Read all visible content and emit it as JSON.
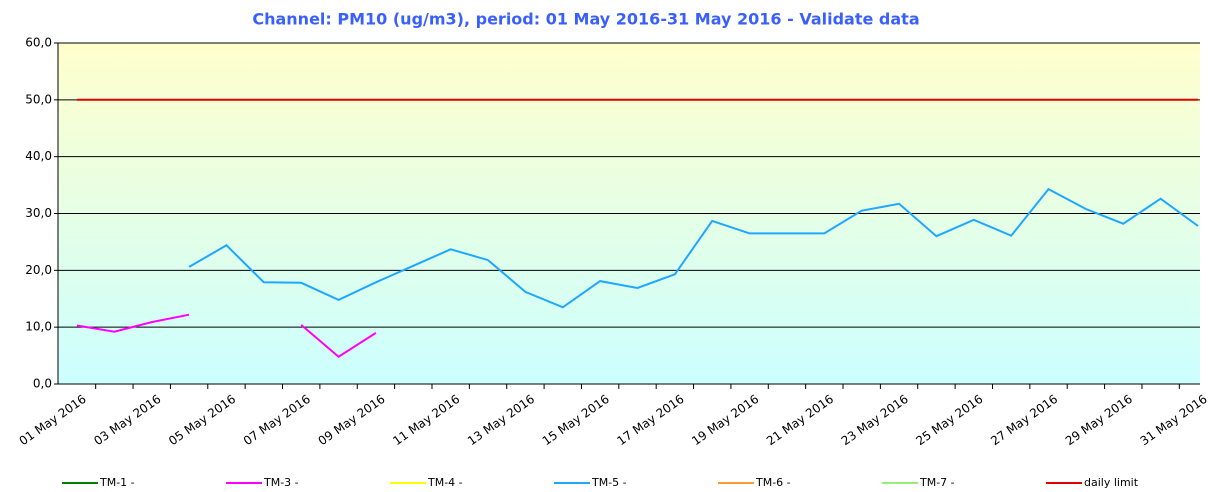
{
  "chart_data": {
    "type": "line",
    "title": "Channel: PM10 (ug/m3), period: 01 May 2016-31 May 2016 - Validate data",
    "categories": [
      "01 May 2016",
      null,
      "03 May 2016",
      null,
      "05 May 2016",
      null,
      "07 May 2016",
      null,
      "09 May 2016",
      null,
      "11 May 2016",
      null,
      "13 May 2016",
      null,
      "15 May 2016",
      null,
      "17 May 2016",
      null,
      "19 May 2016",
      null,
      "21 May 2016",
      null,
      "23 May 2016",
      null,
      "25 May 2016",
      null,
      "27 May 2016",
      null,
      "29 May 2016",
      null,
      "31 May 2016"
    ],
    "series": [
      {
        "name": "TM-1 -",
        "color": "#008000",
        "values": [
          null,
          null,
          null,
          null,
          null,
          null,
          null,
          null,
          null,
          null,
          null,
          null,
          null,
          null,
          null,
          null,
          null,
          null,
          null,
          null,
          null,
          null,
          null,
          null,
          null,
          null,
          null,
          null,
          null,
          null,
          null
        ]
      },
      {
        "name": "TM-3 -",
        "color": "#ff00ff",
        "values": [
          10.3,
          9.2,
          10.9,
          12.2,
          null,
          null,
          10.4,
          4.8,
          9.0,
          null,
          null,
          null,
          null,
          null,
          null,
          null,
          null,
          null,
          null,
          null,
          null,
          null,
          null,
          null,
          null,
          null,
          null,
          null,
          null,
          null,
          null
        ]
      },
      {
        "name": "TM-4 -",
        "color": "#ffff00",
        "values": [
          null,
          null,
          null,
          null,
          null,
          null,
          null,
          null,
          null,
          null,
          null,
          null,
          null,
          null,
          null,
          null,
          null,
          null,
          null,
          null,
          null,
          null,
          null,
          null,
          null,
          null,
          null,
          null,
          null,
          null,
          null
        ]
      },
      {
        "name": "TM-5 -",
        "color": "#1ea7ff",
        "values": [
          null,
          null,
          null,
          20.6,
          24.4,
          17.9,
          17.8,
          14.8,
          17.9,
          20.8,
          23.7,
          21.8,
          16.2,
          13.5,
          18.1,
          16.9,
          19.3,
          28.7,
          26.5,
          26.5,
          26.5,
          30.5,
          31.7,
          26.0,
          28.9,
          26.1,
          34.3,
          30.8,
          28.2,
          32.6,
          27.8
        ]
      },
      {
        "name": "TM-6 -",
        "color": "#ff9933",
        "values": [
          null,
          null,
          null,
          null,
          null,
          null,
          null,
          null,
          null,
          null,
          null,
          null,
          null,
          null,
          null,
          null,
          null,
          null,
          null,
          null,
          null,
          null,
          null,
          null,
          null,
          null,
          null,
          null,
          null,
          null,
          null
        ]
      },
      {
        "name": "TM-7 -",
        "color": "#99ee77",
        "values": [
          null,
          null,
          null,
          null,
          null,
          null,
          null,
          null,
          null,
          null,
          null,
          null,
          null,
          null,
          null,
          null,
          null,
          null,
          null,
          null,
          null,
          null,
          null,
          null,
          null,
          null,
          null,
          null,
          null,
          null,
          null
        ]
      },
      {
        "name": "daily limit",
        "color": "#e00000",
        "values": [
          50,
          50,
          50,
          50,
          50,
          50,
          50,
          50,
          50,
          50,
          50,
          50,
          50,
          50,
          50,
          50,
          50,
          50,
          50,
          50,
          50,
          50,
          50,
          50,
          50,
          50,
          50,
          50,
          50,
          50,
          50
        ]
      }
    ],
    "ylim": [
      0,
      60
    ],
    "yticks": [
      {
        "value": 0,
        "label": "0,0"
      },
      {
        "value": 10,
        "label": "10,0"
      },
      {
        "value": 20,
        "label": "20,0"
      },
      {
        "value": 30,
        "label": "30,0"
      },
      {
        "value": 40,
        "label": "40,0"
      },
      {
        "value": 50,
        "label": "50,0"
      },
      {
        "value": 60,
        "label": "60,0"
      }
    ],
    "grid": true
  }
}
